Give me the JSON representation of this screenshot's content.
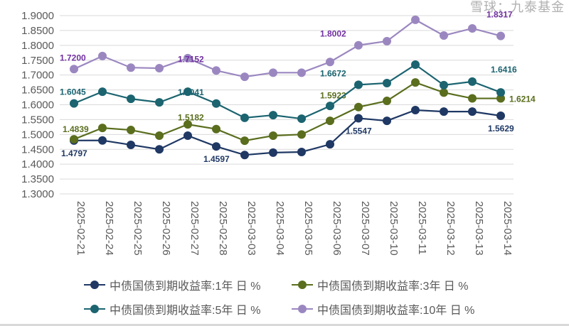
{
  "chart_data": {
    "type": "line",
    "title": "",
    "xlabel": "",
    "ylabel": "",
    "ylim": [
      1.3,
      1.9
    ],
    "yticks": [
      "1.3000",
      "1.3500",
      "1.4000",
      "1.4500",
      "1.5000",
      "1.5500",
      "1.6000",
      "1.6500",
      "1.7000",
      "1.7500",
      "1.8000",
      "1.8500",
      "1.9000"
    ],
    "grid": true,
    "legend_position": "bottom",
    "x": [
      "2025-02-21",
      "2025-02-24",
      "2025-02-25",
      "2025-02-26",
      "2025-02-27",
      "2025-02-28",
      "2025-03-03",
      "2025-03-04",
      "2025-03-05",
      "2025-03-06",
      "2025-03-07",
      "2025-03-10",
      "2025-03-11",
      "2025-03-12",
      "2025-03-13",
      "2025-03-14"
    ],
    "series": [
      {
        "name": "中债国债到期收益率:1年 日 %",
        "color": "#1f3864",
        "values": [
          1.4797,
          1.48,
          1.465,
          1.45,
          1.496,
          1.4597,
          1.431,
          1.439,
          1.441,
          1.467,
          1.5547,
          1.546,
          1.582,
          1.577,
          1.577,
          1.5629
        ],
        "labels": [
          "1.4797",
          "",
          "",
          "",
          "",
          "1.4597",
          "",
          "",
          "",
          "",
          "1.5547",
          "",
          "",
          "",
          "",
          "1.5629"
        ]
      },
      {
        "name": "中债国债到期收益率:3年 日 %",
        "color": "#5a6e1e",
        "values": [
          1.4839,
          1.522,
          1.515,
          1.496,
          1.534,
          1.5182,
          1.479,
          1.496,
          1.5,
          1.546,
          1.5923,
          1.613,
          1.675,
          1.641,
          1.6214,
          1.6214
        ],
        "labels": [
          "1.4839",
          "",
          "",
          "",
          "",
          "1.5182",
          "",
          "",
          "",
          "",
          "1.5923",
          "",
          "",
          "",
          "",
          "1.6214"
        ]
      },
      {
        "name": "中债国债到期收益率:5年 日 %",
        "color": "#1b6470",
        "values": [
          1.6045,
          1.644,
          1.62,
          1.608,
          1.644,
          1.6041,
          1.556,
          1.565,
          1.553,
          1.596,
          1.6672,
          1.673,
          1.735,
          1.666,
          1.678,
          1.6416
        ],
        "labels": [
          "1.6045",
          "",
          "",
          "",
          "",
          "1.6041",
          "",
          "",
          "",
          "",
          "1.6672",
          "",
          "",
          "",
          "",
          "1.6416"
        ]
      },
      {
        "name": "中债国债到期收益率:10年 日 %",
        "color": "#9b87c0",
        "label_color": "#7030a0",
        "values": [
          1.72,
          1.764,
          1.725,
          1.723,
          1.757,
          1.7152,
          1.694,
          1.708,
          1.708,
          1.744,
          1.8002,
          1.814,
          1.886,
          1.833,
          1.857,
          1.8317
        ],
        "labels": [
          "1.7200",
          "",
          "",
          "",
          "",
          "1.7152",
          "",
          "",
          "",
          "",
          "1.8002",
          "",
          "",
          "",
          "",
          "1.8317"
        ]
      }
    ]
  },
  "watermark": "雪球：九泰基金"
}
